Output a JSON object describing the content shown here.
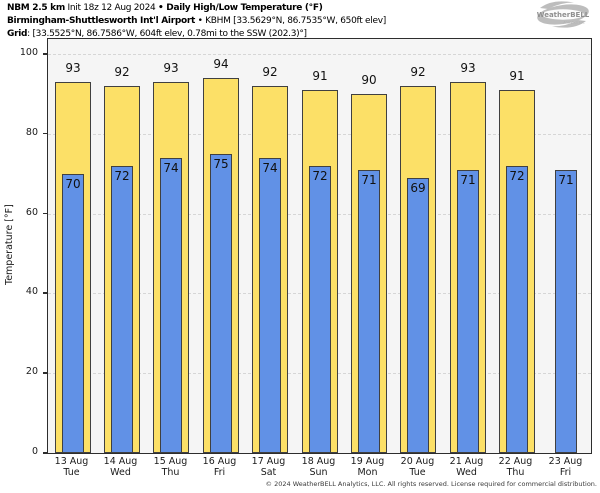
{
  "header": {
    "line1": {
      "model": "NBM 2.5 km",
      "init": " Init 18z 12 Aug 2024 ",
      "title": "• Daily High/Low Temperature (°F)"
    },
    "line2": {
      "station": "Birmingham-Shuttlesworth Int'l Airport",
      "sep": " • ",
      "details": "KBHM [33.5629°N, 86.7535°W, 650ft elev]"
    },
    "line3": {
      "label": "Grid",
      "details": ": [33.5525°N, 86.7586°W, 604ft elev, 0.78mi to the SSW (202.3)°]"
    }
  },
  "logo": {
    "brand": "WeatherBELL",
    "sub": "Analytics LLC"
  },
  "chart_data": {
    "type": "bar",
    "title": "Daily High/Low Temperature (°F)",
    "subtitle": "NBM 2.5 km Init 18z 12 Aug 2024 — Birmingham-Shuttlesworth Int'l Airport (KBHM)",
    "ylabel": "Temperature [°F]",
    "ylim": [
      0,
      103.8
    ],
    "yticks": [
      0,
      20,
      40,
      60,
      80,
      100
    ],
    "grid": "horizontal-dashed",
    "legend_position": "none",
    "categories": [
      {
        "date": "13 Aug",
        "day": "Tue"
      },
      {
        "date": "14 Aug",
        "day": "Wed"
      },
      {
        "date": "15 Aug",
        "day": "Thu"
      },
      {
        "date": "16 Aug",
        "day": "Fri"
      },
      {
        "date": "17 Aug",
        "day": "Sat"
      },
      {
        "date": "18 Aug",
        "day": "Sun"
      },
      {
        "date": "19 Aug",
        "day": "Mon"
      },
      {
        "date": "20 Aug",
        "day": "Tue"
      },
      {
        "date": "21 Aug",
        "day": "Wed"
      },
      {
        "date": "22 Aug",
        "day": "Thu"
      },
      {
        "date": "23 Aug",
        "day": "Fri"
      }
    ],
    "series": [
      {
        "name": "Daily High",
        "color": "#FCE067",
        "values": [
          93,
          92,
          93,
          94,
          92,
          91,
          90,
          92,
          93,
          91,
          null
        ]
      },
      {
        "name": "Daily Low",
        "color": "#6191E6",
        "values": [
          70,
          72,
          74,
          75,
          74,
          72,
          71,
          69,
          71,
          72,
          71
        ]
      }
    ],
    "colors": {
      "bar_border": "#404040",
      "plot_background": "#f5f5f5",
      "gridline": "#d6d6d6"
    }
  },
  "footer": {
    "copyright": "© 2024 WeatherBELL Analytics, LLC. All rights reserved. License required for commercial distribution."
  }
}
